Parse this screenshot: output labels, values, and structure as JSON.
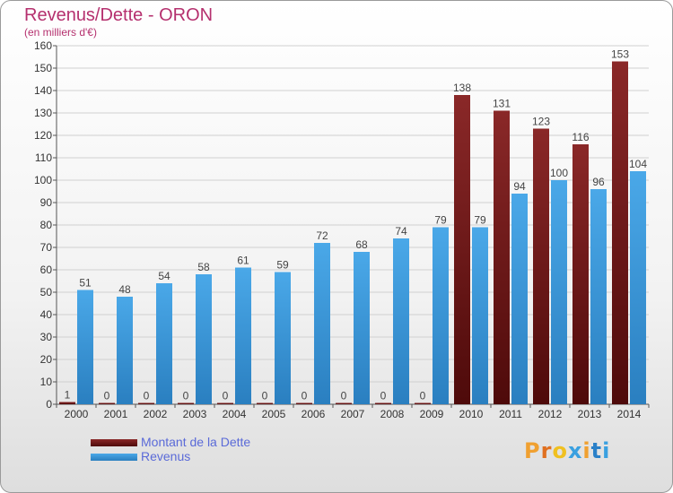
{
  "header": {
    "title": "Revenus/Dette - ORON",
    "subtitle": "(en milliers d'€)"
  },
  "legend": {
    "dette_label": "Montant de la Dette",
    "revenus_label": "Revenus"
  },
  "logo": {
    "text": "Proxiti"
  },
  "colors": {
    "dette": "#7a1c1c",
    "dette_dark": "#5a0e0e",
    "revenus": "#3a9ee0",
    "revenus_dark": "#2a7fc0",
    "title": "#b5306e",
    "grid": "#cccccc"
  },
  "chart_data": {
    "type": "bar",
    "title": "Revenus/Dette - ORON",
    "ylabel": "(en milliers d'€)",
    "xlabel": "",
    "categories": [
      "2000",
      "2001",
      "2002",
      "2003",
      "2004",
      "2005",
      "2006",
      "2007",
      "2008",
      "2009",
      "2010",
      "2011",
      "2012",
      "2013",
      "2014"
    ],
    "series": [
      {
        "name": "Montant de la Dette",
        "values": [
          1,
          0,
          0,
          0,
          0,
          0,
          0,
          0,
          0,
          0,
          138,
          131,
          123,
          116,
          153
        ]
      },
      {
        "name": "Revenus",
        "values": [
          51,
          48,
          54,
          58,
          61,
          59,
          72,
          68,
          74,
          79,
          79,
          94,
          100,
          96,
          104
        ]
      }
    ],
    "ylim": [
      0,
      160
    ],
    "yticks": [
      0,
      10,
      20,
      30,
      40,
      50,
      60,
      70,
      80,
      90,
      100,
      110,
      120,
      130,
      140,
      150,
      160
    ],
    "grid": true,
    "legend_position": "bottom-left"
  }
}
